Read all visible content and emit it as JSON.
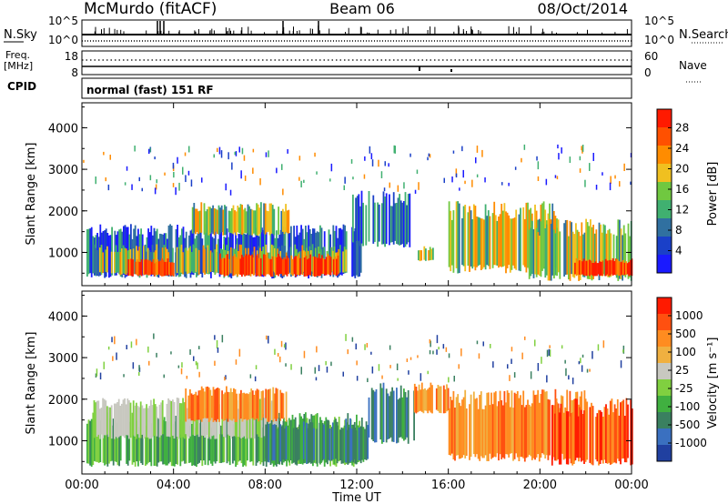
{
  "header": {
    "station": "McMurdo (fitACF)",
    "beam": "Beam 06",
    "date": "08/Oct/2014"
  },
  "status": {
    "nsky_label": "N.Sky",
    "nsky_tick_top": "10^5",
    "nsky_tick_bottom": "10^0",
    "nsearch_label": "N.Search",
    "freq_label_line1": "Freq.",
    "freq_label_line2": "[MHz]",
    "freq_tick_top": "18",
    "freq_tick_bottom": "8",
    "nave_tick_top": "60",
    "nave_tick_bottom": "0",
    "nave_label": "Nave",
    "cpid_label": "CPID",
    "cpid_value": "normal (fast) 151 RF"
  },
  "chart_data": [
    {
      "type": "heatmap",
      "panel": "power",
      "ylabel": "Slant Range [km]",
      "yticks": [
        "1000",
        "2000",
        "3000",
        "4000"
      ],
      "ylim": [
        200,
        4600
      ],
      "xlim": [
        0,
        24
      ],
      "colorbar": {
        "label": "Power [dB]",
        "ticks": [
          "4",
          "8",
          "12",
          "16",
          "20",
          "24",
          "28"
        ],
        "colors": [
          "#1a1aff",
          "#1a40c8",
          "#3070a0",
          "#40b070",
          "#70c840",
          "#f0c020",
          "#ff8c00",
          "#ff5000",
          "#ff1a00"
        ]
      },
      "regions": [
        {
          "t0": 0.2,
          "t1": 12.2,
          "r0": 450,
          "r1": 1500,
          "level": "low"
        },
        {
          "t0": 0.5,
          "t1": 11.5,
          "r0": 500,
          "r1": 1100,
          "level": "mid"
        },
        {
          "t0": 2.0,
          "t1": 4.0,
          "r0": 450,
          "r1": 800,
          "level": "high"
        },
        {
          "t0": 6.0,
          "t1": 11.2,
          "r0": 450,
          "r1": 900,
          "level": "high"
        },
        {
          "t0": 4.8,
          "t1": 9.0,
          "r0": 1450,
          "r1": 2100,
          "level": "mid"
        },
        {
          "t0": 11.8,
          "t1": 14.3,
          "r0": 1200,
          "r1": 2300,
          "level": "low"
        },
        {
          "t0": 14.6,
          "t1": 15.3,
          "r0": 800,
          "r1": 1100,
          "level": "mid"
        },
        {
          "t0": 16.0,
          "t1": 20.8,
          "r0": 600,
          "r1": 2000,
          "level": "mid"
        },
        {
          "t0": 19.5,
          "t1": 24.0,
          "r0": 400,
          "r1": 1600,
          "level": "mid"
        },
        {
          "t0": 21.5,
          "t1": 24.0,
          "r0": 450,
          "r1": 800,
          "level": "high"
        }
      ]
    },
    {
      "type": "heatmap",
      "panel": "velocity",
      "ylabel": "Slant Range [km]",
      "yticks": [
        "1000",
        "2000",
        "3000",
        "4000"
      ],
      "ylim": [
        200,
        4600
      ],
      "xlim": [
        0,
        24
      ],
      "xticks": [
        "00:00",
        "04:00",
        "08:00",
        "12:00",
        "16:00",
        "20:00",
        "00:00"
      ],
      "xlabel": "Time UT",
      "colorbar": {
        "label": "Velocity [m s⁻¹]",
        "ticks": [
          "1000",
          "500",
          "100",
          "25",
          "-25",
          "-100",
          "-500",
          "-1000"
        ],
        "colors": [
          "#2040a0",
          "#3a70c0",
          "#3a8060",
          "#40b040",
          "#80d040",
          "#c8c8c0",
          "#f0b040",
          "#ff8c20",
          "#ff5010",
          "#ff1a00"
        ]
      },
      "regions": [
        {
          "t0": 0.2,
          "t1": 12.2,
          "r0": 450,
          "r1": 1500,
          "level": "green"
        },
        {
          "t0": 0.5,
          "t1": 8.5,
          "r0": 1100,
          "r1": 1900,
          "level": "gray"
        },
        {
          "t0": 4.5,
          "t1": 9.0,
          "r0": 1500,
          "r1": 2200,
          "level": "orange"
        },
        {
          "t0": 8.0,
          "t1": 12.5,
          "r0": 500,
          "r1": 1400,
          "level": "teal"
        },
        {
          "t0": 12.5,
          "t1": 14.5,
          "r0": 1000,
          "r1": 2200,
          "level": "teal"
        },
        {
          "t0": 14.5,
          "t1": 16.0,
          "r0": 1700,
          "r1": 2300,
          "level": "orange"
        },
        {
          "t0": 16.0,
          "t1": 22.0,
          "r0": 600,
          "r1": 2000,
          "level": "orange"
        },
        {
          "t0": 20.5,
          "t1": 24.0,
          "r0": 500,
          "r1": 1800,
          "level": "red"
        }
      ]
    }
  ]
}
